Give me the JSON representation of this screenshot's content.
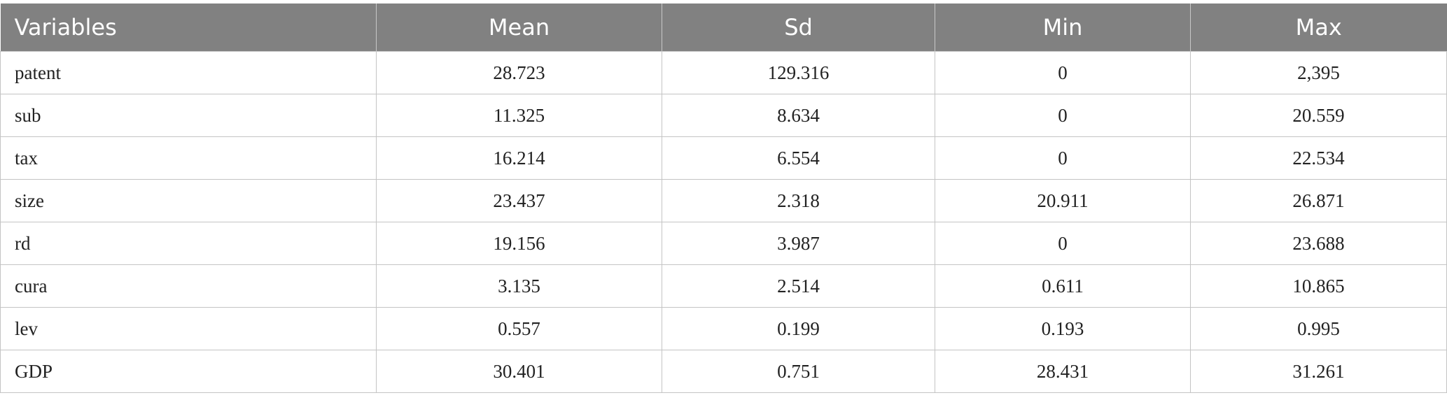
{
  "table": {
    "header": [
      "Variables",
      "Mean",
      "Sd",
      "Min",
      "Max"
    ],
    "rows": [
      [
        "patent",
        "28.723",
        "129.316",
        "0",
        "2,395"
      ],
      [
        "sub",
        "11.325",
        "8.634",
        "0",
        "20.559"
      ],
      [
        "tax",
        "16.214",
        "6.554",
        "0",
        "22.534"
      ],
      [
        "size",
        "23.437",
        "2.318",
        "20.911",
        "26.871"
      ],
      [
        "rd",
        "19.156",
        "3.987",
        "0",
        "23.688"
      ],
      [
        "cura",
        "3.135",
        "2.514",
        "0.611",
        "10.865"
      ],
      [
        "lev",
        "0.557",
        "0.199",
        "0.193",
        "0.995"
      ],
      [
        "GDP",
        "30.401",
        "0.751",
        "28.431",
        "31.261"
      ]
    ]
  }
}
